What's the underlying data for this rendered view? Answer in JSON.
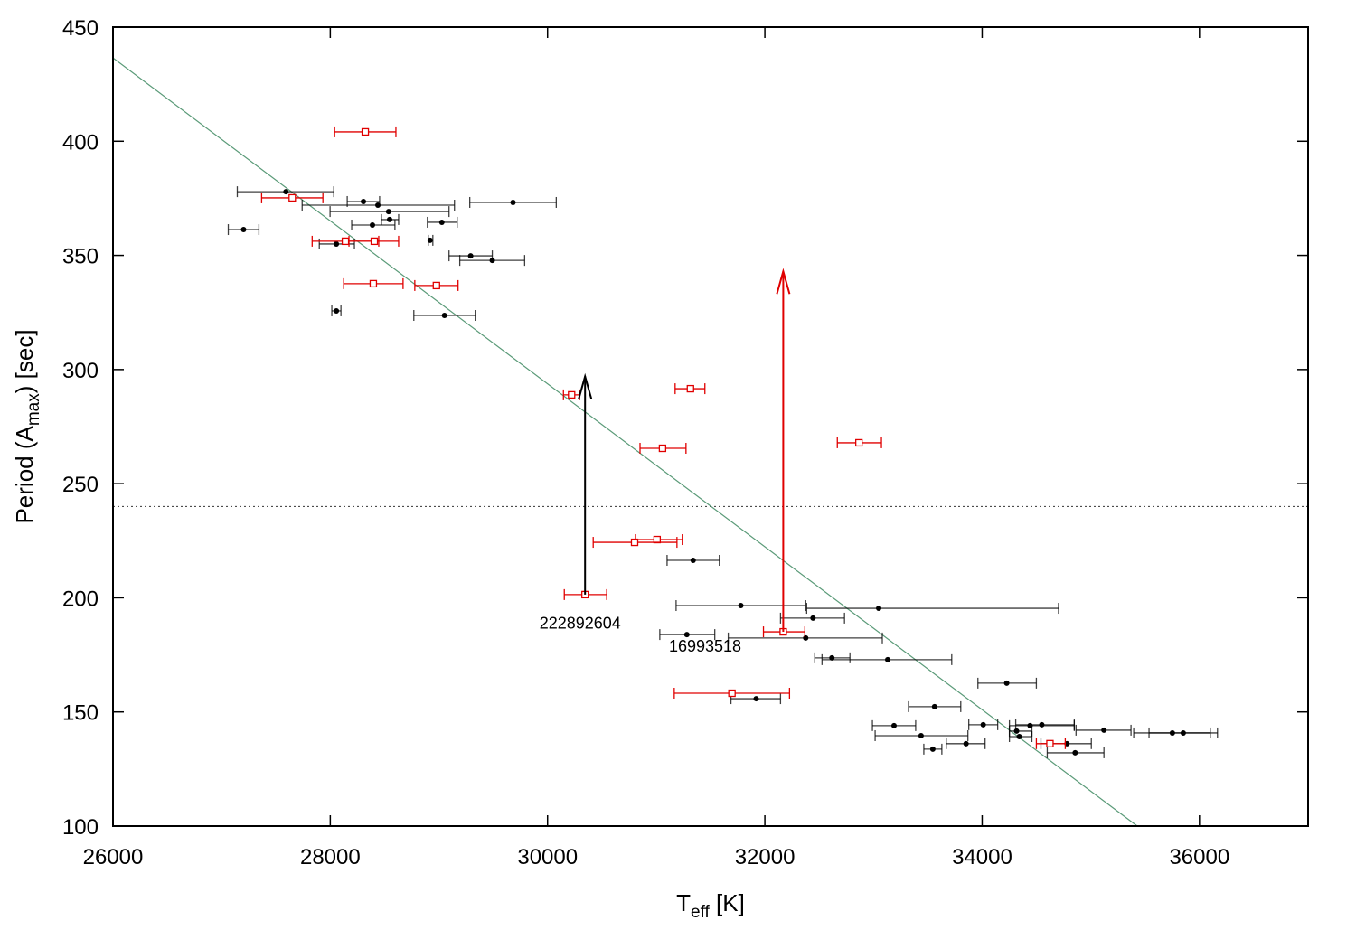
{
  "chart_data": {
    "type": "scatter",
    "title": "",
    "xlabel": {
      "main": "T",
      "sub": "eff",
      "rest": " [K]"
    },
    "ylabel": {
      "main": "Period (A",
      "sub": "max",
      "rest": ") [sec]"
    },
    "xlim": [
      26000,
      37000
    ],
    "ylim": [
      100,
      450
    ],
    "xticks": [
      26000,
      28000,
      30000,
      32000,
      34000,
      36000
    ],
    "yticks": [
      100,
      150,
      200,
      250,
      300,
      350,
      400,
      450
    ],
    "grid": false,
    "colors": {
      "black_series": "#000000",
      "red_series": "#e00000",
      "fit_line": "#5a9a78",
      "reference_line": "#333333"
    },
    "reference_line_y": 240,
    "fit_line": {
      "x": [
        26000,
        35428
      ],
      "y": [
        436.5,
        100
      ]
    },
    "series": [
      {
        "name": "black",
        "marker": "filled-circle",
        "points": [
          [
            27592,
            27144,
            28032,
            377.9
          ],
          [
            28305,
            28156,
            28454,
            373.6
          ],
          [
            28438,
            27741,
            29143,
            372.0
          ],
          [
            28537,
            27998,
            29093,
            369.2
          ],
          [
            28546,
            28471,
            28629,
            365.7
          ],
          [
            28388,
            28197,
            28595,
            363.3
          ],
          [
            29027,
            28894,
            29168,
            364.5
          ],
          [
            27202,
            27061,
            27343,
            361.3
          ],
          [
            28056,
            27899,
            28222,
            355.0
          ],
          [
            28919,
            28902,
            28944,
            356.6
          ],
          [
            29292,
            29093,
            29491,
            349.8
          ],
          [
            29491,
            29192,
            29789,
            347.8
          ],
          [
            28056,
            28014,
            28098,
            325.7
          ],
          [
            29051,
            28769,
            29334,
            323.7
          ],
          [
            29682,
            29284,
            30080,
            373.2
          ],
          [
            31340,
            31100,
            31581,
            216.4
          ],
          [
            31779,
            31183,
            32376,
            196.6
          ],
          [
            33048,
            32385,
            34703,
            195.4
          ],
          [
            32443,
            32144,
            32733,
            191.1
          ],
          [
            31282,
            31033,
            31539,
            183.9
          ],
          [
            32376,
            31663,
            33081,
            182.4
          ],
          [
            32617,
            32459,
            32783,
            173.7
          ],
          [
            33131,
            32526,
            33720,
            172.9
          ],
          [
            34226,
            33961,
            34499,
            162.6
          ],
          [
            33562,
            33322,
            33803,
            152.3
          ],
          [
            33189,
            32990,
            33388,
            144.0
          ],
          [
            34010,
            33877,
            34143,
            144.4
          ],
          [
            34441,
            34251,
            34848,
            144.0
          ],
          [
            34549,
            34309,
            34848,
            144.4
          ],
          [
            35121,
            34864,
            35370,
            142.0
          ],
          [
            35751,
            35395,
            36100,
            140.8
          ],
          [
            35851,
            35536,
            36166,
            140.8
          ],
          [
            33438,
            33015,
            33869,
            139.6
          ],
          [
            34317,
            34251,
            34458,
            141.6
          ],
          [
            34342,
            34251,
            34458,
            139.2
          ],
          [
            34781,
            34541,
            35005,
            136.1
          ],
          [
            33852,
            33670,
            34027,
            136.1
          ],
          [
            33546,
            33463,
            33629,
            133.7
          ],
          [
            34856,
            34599,
            35121,
            132.1
          ],
          [
            31920,
            31688,
            32144,
            155.8
          ]
        ]
      },
      {
        "name": "red",
        "marker": "open-square",
        "points": [
          [
            28322,
            28040,
            28604,
            404.1
          ],
          [
            27650,
            27368,
            27932,
            375.2
          ],
          [
            28139,
            27833,
            28446,
            356.2
          ],
          [
            28405,
            28172,
            28629,
            356.2
          ],
          [
            28396,
            28123,
            28670,
            337.6
          ],
          [
            28977,
            28778,
            29176,
            336.8
          ],
          [
            30221,
            30146,
            30295,
            288.9
          ],
          [
            31315,
            31174,
            31448,
            291.6
          ],
          [
            31058,
            30851,
            31274,
            265.5
          ],
          [
            32866,
            32667,
            33073,
            267.9
          ],
          [
            31008,
            30809,
            31240,
            225.5
          ],
          [
            30801,
            30420,
            31191,
            224.3
          ],
          [
            30345,
            30154,
            30544,
            201.4
          ],
          [
            32169,
            31987,
            32368,
            185.1
          ],
          [
            31697,
            31166,
            32227,
            158.2
          ],
          [
            34624,
            34499,
            34765,
            136.1
          ]
        ]
      }
    ],
    "point_format": "[x, x_err_low, x_err_high, y]",
    "arrows": [
      {
        "color": "black",
        "x": 30345,
        "y_from": 201.4,
        "y_to": 297
      },
      {
        "color": "red",
        "x": 32169,
        "y_from": 185.1,
        "y_to": 343
      }
    ],
    "annotations": [
      {
        "text": "222892604",
        "x": 30300,
        "y": 190
      },
      {
        "text": "16993518",
        "x": 31450,
        "y": 180
      }
    ]
  }
}
